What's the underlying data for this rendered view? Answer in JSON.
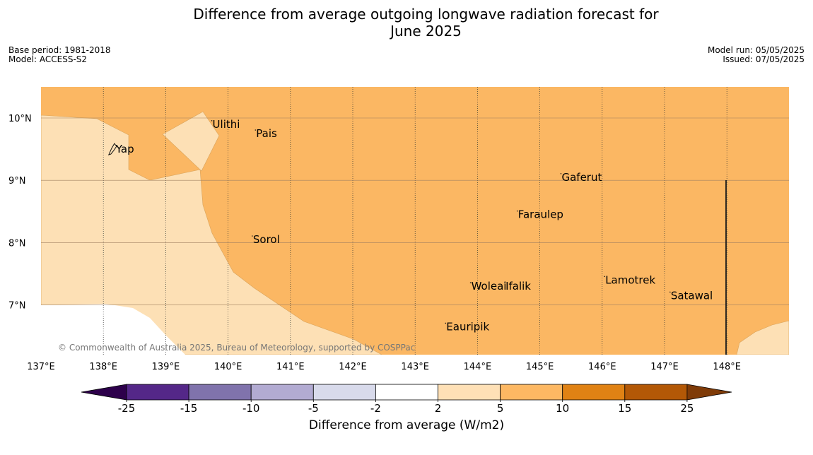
{
  "title": {
    "line1": "Difference from average outgoing longwave radiation forecast for",
    "line2": "June 2025"
  },
  "meta_left": {
    "base_period": "Base period: 1981-2018",
    "model": "Model: ACCESS-S2"
  },
  "meta_right": {
    "model_run": "Model run: 05/05/2025",
    "issued": "Issued: 07/05/2025"
  },
  "map": {
    "lat_labels": [
      {
        "lat": 10,
        "text": "10°N"
      },
      {
        "lat": 9,
        "text": "9°N"
      },
      {
        "lat": 8,
        "text": "8°N"
      },
      {
        "lat": 7,
        "text": "7°N"
      }
    ],
    "lon_labels": [
      {
        "lon": 137,
        "text": "137°E"
      },
      {
        "lon": 138,
        "text": "138°E"
      },
      {
        "lon": 139,
        "text": "139°E"
      },
      {
        "lon": 140,
        "text": "140°E"
      },
      {
        "lon": 141,
        "text": "141°E"
      },
      {
        "lon": 142,
        "text": "142°E"
      },
      {
        "lon": 143,
        "text": "143°E"
      },
      {
        "lon": 144,
        "text": "144°E"
      },
      {
        "lon": 145,
        "text": "145°E"
      },
      {
        "lon": 146,
        "text": "146°E"
      },
      {
        "lon": 147,
        "text": "147°E"
      },
      {
        "lon": 148,
        "text": "148°E"
      }
    ],
    "places": [
      {
        "name": "Ulithi",
        "lon": 139.75,
        "lat": 9.9
      },
      {
        "name": "Pais",
        "lon": 140.45,
        "lat": 9.75
      },
      {
        "name": "Yap",
        "lon": 138.2,
        "lat": 9.5
      },
      {
        "name": "Gaferut",
        "lon": 145.35,
        "lat": 9.05
      },
      {
        "name": "Faraulep",
        "lon": 144.65,
        "lat": 8.45
      },
      {
        "name": "Sorol",
        "lon": 140.4,
        "lat": 8.05
      },
      {
        "name": "Lamotrek",
        "lon": 146.05,
        "lat": 7.4
      },
      {
        "name": "Woleai",
        "lon": 143.9,
        "lat": 7.3
      },
      {
        "name": "Ifalik",
        "lon": 144.45,
        "lat": 7.3
      },
      {
        "name": "Satawal",
        "lon": 147.1,
        "lat": 7.15
      },
      {
        "name": "Eauripik",
        "lon": 143.5,
        "lat": 6.65
      }
    ],
    "copyright": "© Commonwealth of Australia 2025, Bureau of Meteorology, supported by COSPPac"
  },
  "colorbar": {
    "label": "Difference from average (W/m2)",
    "ticks": [
      "-25",
      "-15",
      "-10",
      "-5",
      "-2",
      "2",
      "5",
      "10",
      "15",
      "25"
    ],
    "colors": [
      "#2d004b",
      "#542788",
      "#8073ac",
      "#b2abd2",
      "#d8daeb",
      "#ffffff",
      "#fee0b6",
      "#fdb863",
      "#e08214",
      "#b35806",
      "#7f3b08"
    ]
  }
}
